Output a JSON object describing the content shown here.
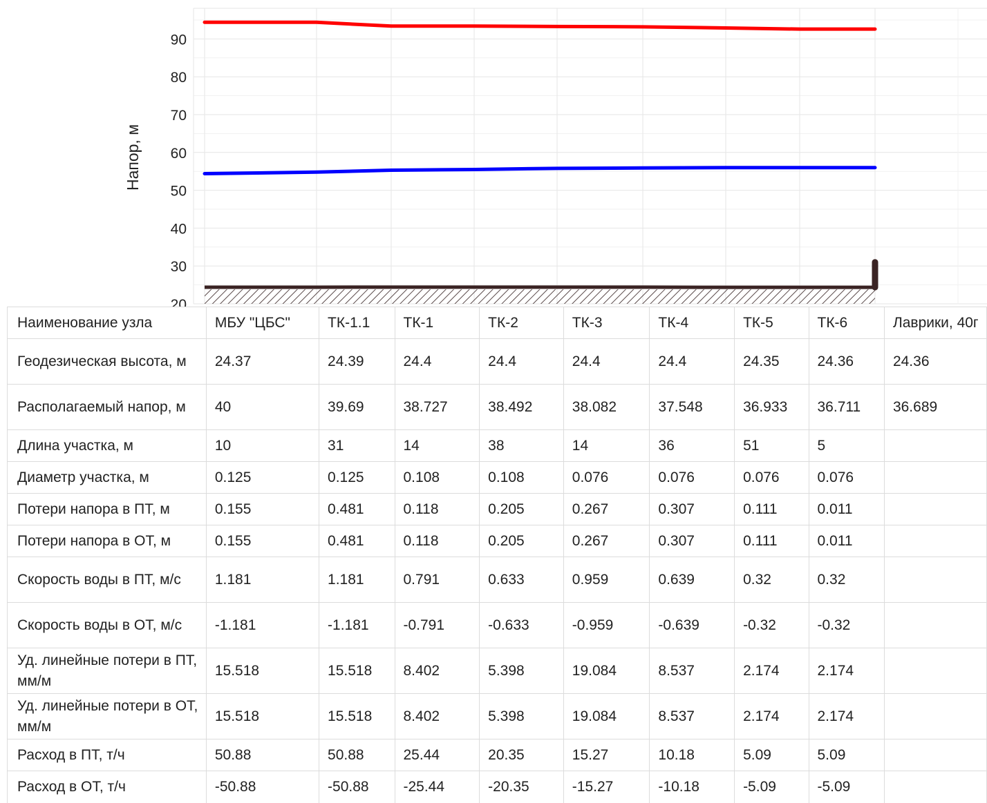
{
  "chart_data": {
    "type": "line",
    "ylabel": "Напор, м",
    "y_ticks": [
      "20",
      "30",
      "40",
      "50",
      "60",
      "70",
      "80",
      "90"
    ],
    "ylim": [
      20,
      95
    ],
    "grid": true,
    "x_positions": [
      0,
      10,
      41,
      55,
      93,
      107,
      143,
      194,
      199
    ],
    "series": [
      {
        "color": "#ff0000",
        "values": [
          94.4,
          94.4,
          93.4,
          93.4,
          93.3,
          93.2,
          92.9,
          92.6,
          92.6
        ]
      },
      {
        "color": "#0000ff",
        "values": [
          54.4,
          54.8,
          55.3,
          55.5,
          55.8,
          55.9,
          56.0,
          56.0,
          56.0
        ]
      }
    ],
    "ground": [
      24.37,
      24.39,
      24.4,
      24.4,
      24.4,
      24.4,
      24.35,
      24.36,
      24.36
    ],
    "ground_color": "#3a2323",
    "consumer_marker": {
      "x": 199,
      "from": 24.36,
      "to": 31.0
    }
  },
  "table": {
    "nodes": [
      "МБУ \"ЦБС\"",
      "ТК-1.1",
      "ТК-1",
      "ТК-2",
      "ТК-3",
      "ТК-4",
      "ТК-5",
      "ТК-6",
      "Лаврики, 40г"
    ],
    "rows": [
      {
        "label": "Наименование узла",
        "cells": [
          "МБУ \"ЦБС\"",
          "ТК-1.1",
          "ТК-1",
          "ТК-2",
          "ТК-3",
          "ТК-4",
          "ТК-5",
          "ТК-6",
          "Лаврики, 40г"
        ]
      },
      {
        "label": "Геодезическая высота, м",
        "cells": [
          "24.37",
          "24.39",
          "24.4",
          "24.4",
          "24.4",
          "24.4",
          "24.35",
          "24.36",
          "24.36"
        ]
      },
      {
        "label": "Располагаемый напор, м",
        "cells": [
          "40",
          "39.69",
          "38.727",
          "38.492",
          "38.082",
          "37.548",
          "36.933",
          "36.711",
          "36.689"
        ]
      },
      {
        "label": "Длина участка, м",
        "cells": [
          "10",
          "31",
          "14",
          "38",
          "14",
          "36",
          "51",
          "5",
          ""
        ]
      },
      {
        "label": "Диаметр участка, м",
        "cells": [
          "0.125",
          "0.125",
          "0.108",
          "0.108",
          "0.076",
          "0.076",
          "0.076",
          "0.076",
          ""
        ]
      },
      {
        "label": "Потери напора в ПТ, м",
        "cells": [
          "0.155",
          "0.481",
          "0.118",
          "0.205",
          "0.267",
          "0.307",
          "0.111",
          "0.011",
          ""
        ]
      },
      {
        "label": "Потери напора в ОТ, м",
        "cells": [
          "0.155",
          "0.481",
          "0.118",
          "0.205",
          "0.267",
          "0.307",
          "0.111",
          "0.011",
          ""
        ]
      },
      {
        "label": "Скорость воды в ПТ, м/с",
        "cells": [
          "1.181",
          "1.181",
          "0.791",
          "0.633",
          "0.959",
          "0.639",
          "0.32",
          "0.32",
          ""
        ]
      },
      {
        "label": "Скорость воды в ОТ, м/с",
        "cells": [
          "-1.181",
          "-1.181",
          "-0.791",
          "-0.633",
          "-0.959",
          "-0.639",
          "-0.32",
          "-0.32",
          ""
        ]
      },
      {
        "label": "Уд. линейные потери в ПТ, мм/м",
        "cells": [
          "15.518",
          "15.518",
          "8.402",
          "5.398",
          "19.084",
          "8.537",
          "2.174",
          "2.174",
          ""
        ]
      },
      {
        "label": "Уд. линейные потери в ОТ, мм/м",
        "cells": [
          "15.518",
          "15.518",
          "8.402",
          "5.398",
          "19.084",
          "8.537",
          "2.174",
          "2.174",
          ""
        ]
      },
      {
        "label": "Расход в ПТ, т/ч",
        "cells": [
          "50.88",
          "50.88",
          "25.44",
          "20.35",
          "15.27",
          "10.18",
          "5.09",
          "5.09",
          ""
        ]
      },
      {
        "label": "Расход в ОТ, т/ч",
        "cells": [
          "-50.88",
          "-50.88",
          "-25.44",
          "-20.35",
          "-15.27",
          "-10.18",
          "-5.09",
          "-5.09",
          ""
        ]
      }
    ]
  }
}
